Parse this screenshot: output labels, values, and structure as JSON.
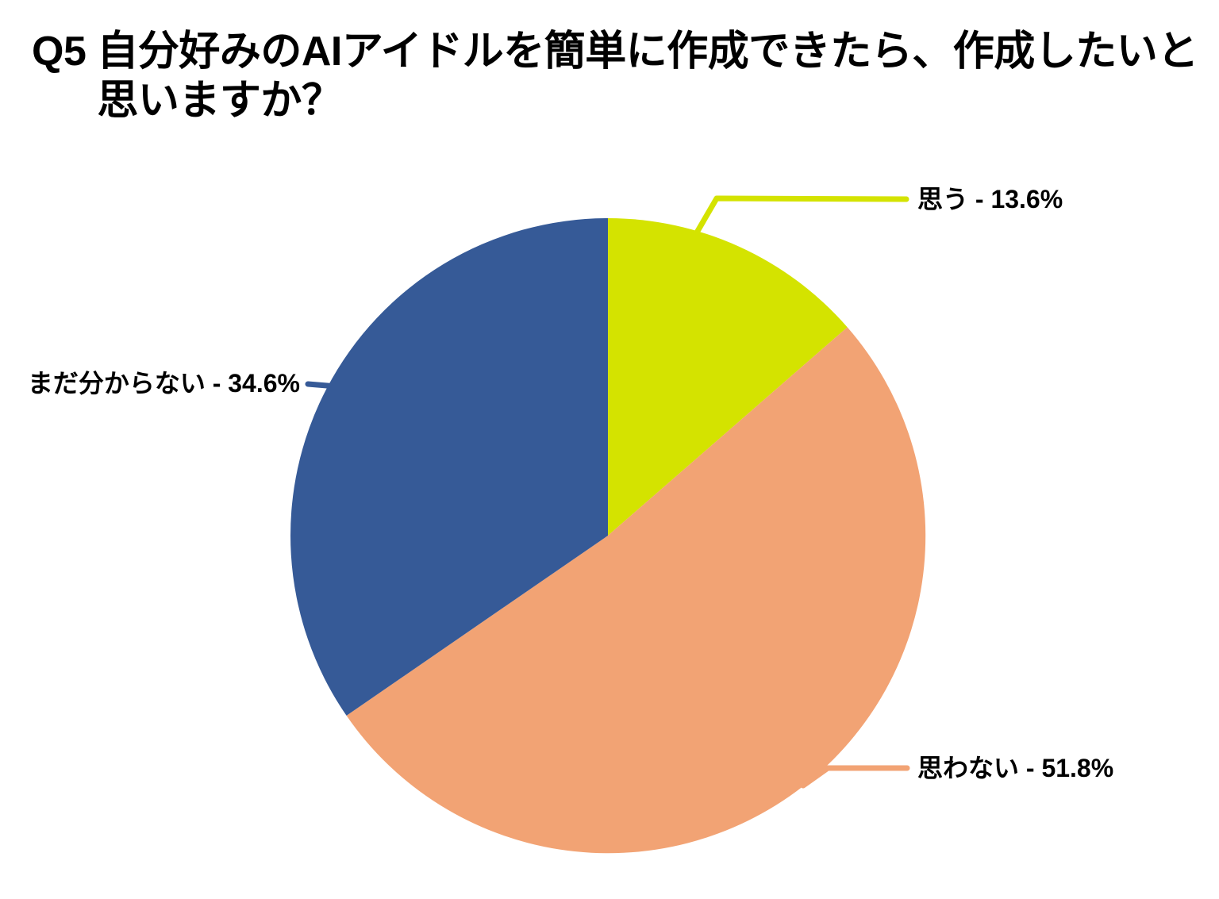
{
  "title": {
    "prefix": "Q5",
    "line1": "自分好みのAIアイドルを簡単に作成できたら、作成したいと",
    "line2": "思いますか？"
  },
  "chart_data": {
    "type": "pie",
    "title": "Q5 自分好みのAIアイドルを簡単に作成できたら、作成したいと思いますか？",
    "unit": "%",
    "start_angle_deg": 0,
    "direction": "clockwise",
    "legend_position": "none",
    "label_style": "outside-with-leader-lines",
    "label_format": "name - value%",
    "background_color": "#ffffff",
    "text_color": "#000000",
    "slices": [
      {
        "name": "思う",
        "value": 13.6,
        "color": "#d4e300",
        "label": "思う - 13.6%"
      },
      {
        "name": "思わない",
        "value": 51.8,
        "color": "#f2a374",
        "label": "思わない - 51.8%"
      },
      {
        "name": "まだ分からない",
        "value": 34.6,
        "color": "#365a97",
        "label": "まだ分からない - 34.6%"
      }
    ]
  }
}
